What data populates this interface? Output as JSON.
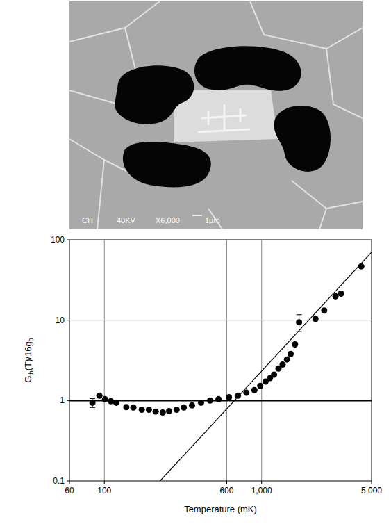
{
  "micrograph": {
    "labels": [
      "CIT",
      "40KV",
      "X6,000",
      "1μm"
    ]
  },
  "chart_data": {
    "type": "scatter",
    "xlabel": "Temperature (mK)",
    "ylabel": [
      "G",
      {
        "sub": "th"
      },
      "(T)/16g",
      {
        "sub": "0"
      }
    ],
    "log": true,
    "grid": true,
    "xlim": [
      60,
      5000
    ],
    "ylim": [
      0.1,
      100
    ],
    "xticks": [
      60,
      100,
      600,
      {
        "value": 1000,
        "label": "1,000"
      },
      {
        "value": 5000,
        "label": "5,000"
      }
    ],
    "yticks": [
      0.1,
      1,
      10,
      100
    ],
    "series": [
      {
        "type": "scatter",
        "marker": "circle",
        "color": "#000000",
        "x": [
          84,
          93,
          101,
          110,
          119,
          138,
          153,
          173,
          192,
          212,
          235,
          258,
          288,
          320,
          361,
          412,
          470,
          532,
          620,
          707,
          800,
          900,
          980,
          1060,
          1130,
          1200,
          1280,
          1360,
          1450,
          1530,
          1630,
          1730,
          2200,
          2500,
          2950,
          3200,
          4300
        ],
        "values": [
          0.94,
          1.15,
          1.04,
          0.98,
          0.94,
          0.83,
          0.82,
          0.77,
          0.77,
          0.73,
          0.71,
          0.74,
          0.77,
          0.82,
          0.87,
          0.94,
          1.0,
          1.04,
          1.1,
          1.15,
          1.25,
          1.35,
          1.52,
          1.72,
          1.9,
          2.1,
          2.5,
          2.8,
          3.25,
          3.8,
          5.0,
          9.4,
          10.4,
          13.2,
          19.8,
          21.4,
          46.8
        ],
        "errors": [
          [
            0.12,
            0.12
          ],
          null,
          null,
          null,
          null,
          null,
          null,
          null,
          null,
          null,
          null,
          null,
          null,
          null,
          null,
          null,
          null,
          null,
          null,
          null,
          null,
          null,
          null,
          null,
          null,
          null,
          null,
          null,
          null,
          null,
          null,
          [
            2.2,
            2.3
          ],
          null,
          null,
          null,
          null,
          null
        ]
      },
      {
        "type": "line",
        "line_style": "solid",
        "color": "#000000",
        "x": [
          226,
          5000
        ],
        "values": [
          0.1,
          70
        ]
      },
      {
        "type": "line",
        "line_style": "bold",
        "color": "#000000",
        "x": [
          60,
          5000
        ],
        "values": [
          1,
          1
        ]
      }
    ]
  }
}
